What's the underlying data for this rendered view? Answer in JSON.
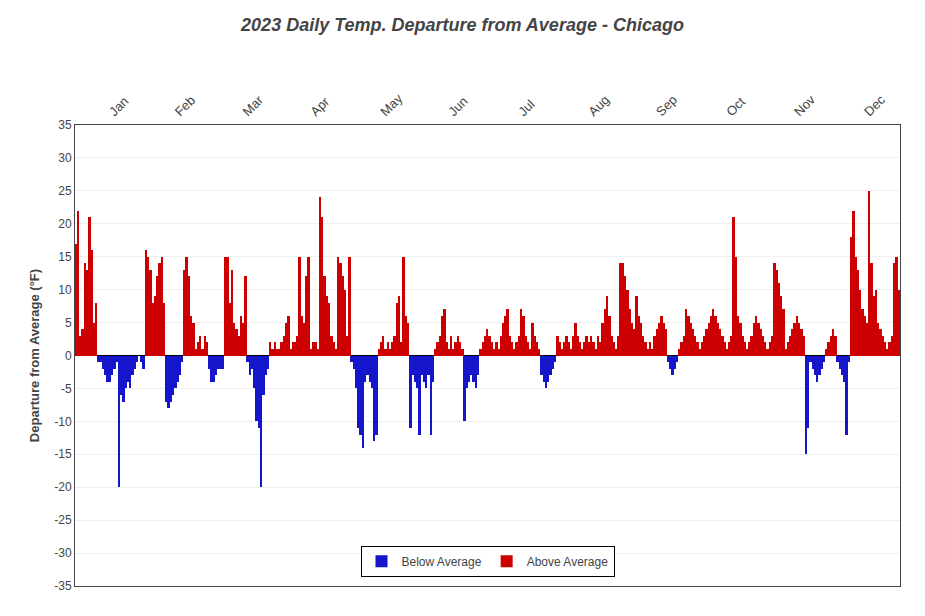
{
  "chart_data": {
    "type": "bar",
    "title": "2023 Daily Temp. Departure from Average - Chicago",
    "ylabel": "Departure from Average (°F)",
    "ylim": [
      -35,
      35
    ],
    "yticks": [
      -35,
      -30,
      -25,
      -20,
      -15,
      -10,
      -5,
      0,
      5,
      10,
      15,
      20,
      25,
      30,
      35
    ],
    "grid": true,
    "legend": "lower center",
    "categories": [
      null,
      null,
      null,
      null,
      null,
      null,
      null,
      null,
      null,
      null,
      null,
      null,
      null,
      null,
      null,
      "Jan",
      null,
      null,
      null,
      null,
      null,
      null,
      null,
      null,
      null,
      null,
      null,
      null,
      null,
      null,
      null,
      null,
      null,
      null,
      null,
      null,
      null,
      null,
      null,
      null,
      null,
      null,
      null,
      null,
      "Feb",
      null,
      null,
      null,
      null,
      null,
      null,
      null,
      null,
      null,
      null,
      null,
      null,
      null,
      null,
      null,
      null,
      null,
      null,
      null,
      null,
      null,
      null,
      null,
      null,
      null,
      null,
      null,
      null,
      null,
      "Mar",
      null,
      null,
      null,
      null,
      null,
      null,
      null,
      null,
      null,
      null,
      null,
      null,
      null,
      null,
      null,
      null,
      null,
      null,
      null,
      null,
      null,
      null,
      null,
      null,
      null,
      null,
      null,
      null,
      null,
      "Apr",
      null,
      null,
      null,
      null,
      null,
      null,
      null,
      null,
      null,
      null,
      null,
      null,
      null,
      null,
      null,
      null,
      null,
      null,
      null,
      null,
      null,
      null,
      null,
      null,
      null,
      null,
      null,
      null,
      null,
      null,
      "May",
      null,
      null,
      null,
      null,
      null,
      null,
      null,
      null,
      null,
      null,
      null,
      null,
      null,
      null,
      null,
      null,
      null,
      null,
      null,
      null,
      null,
      null,
      null,
      null,
      null,
      null,
      null,
      null,
      null,
      "Jun",
      null,
      null,
      null,
      null,
      null,
      null,
      null,
      null,
      null,
      null,
      null,
      null,
      null,
      null,
      null,
      null,
      null,
      null,
      null,
      null,
      null,
      null,
      null,
      null,
      null,
      null,
      null,
      null,
      null,
      null,
      "Jul",
      null,
      null,
      null,
      null,
      null,
      null,
      null,
      null,
      null,
      null,
      null,
      null,
      null,
      null,
      null,
      null,
      null,
      null,
      null,
      null,
      null,
      null,
      null,
      null,
      null,
      null,
      null,
      null,
      null,
      null,
      "Aug",
      null,
      null,
      null,
      null,
      null,
      null,
      null,
      null,
      null,
      null,
      null,
      null,
      null,
      null,
      null,
      null,
      null,
      null,
      null,
      null,
      null,
      null,
      null,
      null,
      null,
      null,
      null,
      null,
      null,
      "Sep",
      null,
      null,
      null,
      null,
      null,
      null,
      null,
      null,
      null,
      null,
      null,
      null,
      null,
      null,
      null,
      null,
      null,
      null,
      null,
      null,
      null,
      null,
      null,
      null,
      null,
      null,
      null,
      null,
      null,
      null,
      "Oct",
      null,
      null,
      null,
      null,
      null,
      null,
      null,
      null,
      null,
      null,
      null,
      null,
      null,
      null,
      null,
      null,
      null,
      null,
      null,
      null,
      null,
      null,
      null,
      null,
      null,
      null,
      null,
      null,
      null,
      "Nov",
      null,
      null,
      null,
      null,
      null,
      null,
      null,
      null,
      null,
      null,
      null,
      null,
      null,
      null,
      null,
      null,
      null,
      null,
      null,
      null,
      null,
      null,
      null,
      null,
      null,
      null,
      null,
      null,
      null,
      null,
      "Dec",
      null,
      null,
      null,
      null,
      null,
      null,
      null,
      null,
      null,
      null,
      null,
      null,
      null,
      null,
      null
    ],
    "series": [
      {
        "name": "Below Average",
        "color": "#1515CC",
        "values": [
          null,
          null,
          null,
          null,
          null,
          null,
          null,
          null,
          null,
          null,
          -1,
          -1,
          -2,
          -3,
          -4,
          -4,
          -3,
          -2,
          -1,
          -20,
          -6,
          -7,
          -5,
          -4,
          -5,
          -3,
          -2,
          -1,
          0,
          -1,
          -2,
          null,
          null,
          null,
          null,
          null,
          null,
          null,
          null,
          null,
          -7,
          -8,
          -7,
          -6,
          -5,
          -4,
          -3,
          -1,
          null,
          null,
          null,
          null,
          null,
          null,
          null,
          null,
          null,
          null,
          null,
          -2,
          -4,
          -4,
          -3,
          -2,
          -2,
          -2,
          null,
          null,
          null,
          null,
          null,
          null,
          null,
          null,
          null,
          null,
          -1,
          -3,
          -2,
          -5,
          -10,
          -11,
          -20,
          -6,
          -3,
          -2,
          null,
          null,
          null,
          null,
          null,
          null,
          null,
          null,
          null,
          null,
          null,
          null,
          null,
          null,
          null,
          null,
          null,
          null,
          null,
          null,
          null,
          null,
          null,
          null,
          null,
          null,
          null,
          null,
          null,
          null,
          null,
          null,
          null,
          null,
          null,
          null,
          -1,
          -2,
          -5,
          -11,
          -12,
          -14,
          -4,
          -3,
          -4,
          -5,
          -13,
          -12,
          null,
          null,
          null,
          null,
          null,
          null,
          null,
          null,
          null,
          null,
          null,
          null,
          null,
          null,
          -11,
          -3,
          -4,
          -5,
          -12,
          -3,
          -4,
          -5,
          -3,
          -12,
          -4,
          null,
          null,
          null,
          null,
          null,
          null,
          null,
          null,
          null,
          null,
          null,
          null,
          null,
          -10,
          -5,
          -4,
          -3,
          -4,
          -5,
          -3,
          null,
          null,
          null,
          null,
          null,
          null,
          null,
          null,
          null,
          null,
          null,
          null,
          null,
          null,
          null,
          null,
          null,
          null,
          null,
          null,
          null,
          null,
          null,
          null,
          null,
          null,
          null,
          -3,
          -4,
          -5,
          -4,
          -3,
          -2,
          -1,
          null,
          null,
          null,
          null,
          null,
          null,
          null,
          null,
          null,
          null,
          null,
          null,
          null,
          null,
          null,
          null,
          null,
          null,
          null,
          null,
          null,
          null,
          null,
          null,
          null,
          null,
          null,
          null,
          null,
          null,
          null,
          null,
          null,
          null,
          null,
          null,
          null,
          null,
          null,
          null,
          null,
          null,
          null,
          null,
          null,
          null,
          null,
          null,
          null,
          -1,
          -2,
          -3,
          -2,
          -1,
          null,
          null,
          null,
          null,
          null,
          null,
          null,
          null,
          null,
          null,
          null,
          null,
          null,
          null,
          null,
          null,
          null,
          null,
          null,
          null,
          null,
          null,
          null,
          null,
          null,
          null,
          null,
          null,
          null,
          null,
          null,
          null,
          null,
          null,
          null,
          null,
          null,
          null,
          null,
          null,
          null,
          null,
          null,
          null,
          null,
          null,
          null,
          null,
          null,
          null,
          null,
          null,
          null,
          null,
          null,
          null,
          -15,
          -11,
          -1,
          -2,
          -3,
          -4,
          -3,
          -2,
          -1,
          null,
          null,
          null,
          null,
          null,
          -1,
          -2,
          -3,
          -4,
          -12,
          -1,
          null,
          null,
          null,
          null,
          null,
          null,
          null,
          null,
          null,
          null,
          null,
          null,
          null,
          null,
          null,
          null,
          null,
          null,
          null,
          null,
          null,
          null
        ]
      },
      {
        "name": "Above Average",
        "color": "#CC0000",
        "values": [
          17,
          22,
          3,
          4,
          14,
          13,
          21,
          16,
          5,
          8,
          null,
          null,
          null,
          null,
          null,
          null,
          null,
          null,
          null,
          null,
          null,
          null,
          null,
          null,
          null,
          null,
          null,
          null,
          0,
          null,
          null,
          16,
          15,
          13,
          8,
          9,
          12,
          14,
          15,
          8,
          null,
          null,
          null,
          null,
          null,
          null,
          null,
          null,
          13,
          15,
          12,
          6,
          5,
          1,
          2,
          3,
          1,
          3,
          2,
          null,
          null,
          null,
          null,
          null,
          null,
          null,
          15,
          15,
          8,
          13,
          5,
          4,
          3,
          6,
          5,
          12,
          null,
          null,
          null,
          null,
          null,
          null,
          null,
          null,
          null,
          null,
          2,
          1,
          2,
          1,
          1,
          2,
          3,
          5,
          6,
          1,
          2,
          2,
          3,
          15,
          6,
          5,
          12,
          15,
          1,
          2,
          2,
          1,
          24,
          21,
          12,
          9,
          8,
          3,
          2,
          1,
          15,
          14,
          12,
          10,
          3,
          15,
          null,
          null,
          null,
          null,
          null,
          null,
          null,
          null,
          null,
          null,
          null,
          null,
          1,
          2,
          3,
          1,
          2,
          1,
          2,
          3,
          8,
          9,
          2,
          15,
          6,
          5,
          null,
          null,
          null,
          null,
          null,
          null,
          null,
          null,
          null,
          null,
          null,
          1,
          2,
          3,
          6,
          7,
          2,
          1,
          3,
          1,
          2,
          3,
          2,
          1,
          null,
          null,
          null,
          null,
          null,
          null,
          null,
          1,
          2,
          3,
          4,
          3,
          2,
          1,
          2,
          1,
          3,
          5,
          6,
          7,
          3,
          2,
          1,
          2,
          3,
          7,
          6,
          3,
          2,
          1,
          5,
          3,
          2,
          1,
          null,
          null,
          null,
          null,
          null,
          null,
          null,
          3,
          2,
          1,
          2,
          3,
          2,
          1,
          3,
          5,
          3,
          2,
          1,
          2,
          3,
          2,
          3,
          2,
          1,
          3,
          2,
          5,
          7,
          9,
          6,
          3,
          2,
          1,
          3,
          14,
          14,
          12,
          10,
          7,
          5,
          4,
          9,
          6,
          5,
          3,
          2,
          1,
          2,
          1,
          3,
          4,
          5,
          6,
          5,
          4,
          null,
          null,
          null,
          null,
          null,
          1,
          2,
          3,
          7,
          6,
          5,
          4,
          3,
          2,
          1,
          2,
          3,
          4,
          5,
          6,
          7,
          6,
          5,
          4,
          3,
          2,
          1,
          2,
          3,
          21,
          15,
          6,
          5,
          3,
          2,
          1,
          2,
          3,
          5,
          6,
          5,
          4,
          3,
          2,
          1,
          2,
          3,
          14,
          13,
          11,
          9,
          7,
          1,
          2,
          3,
          4,
          5,
          6,
          5,
          4,
          3,
          null,
          null,
          null,
          null,
          null,
          null,
          null,
          null,
          null,
          1,
          2,
          3,
          4,
          3,
          null,
          null,
          null,
          null,
          null,
          null,
          18,
          22,
          15,
          13,
          10,
          7,
          6,
          5,
          25,
          14,
          9,
          10,
          5,
          4,
          3,
          2,
          1,
          2,
          3,
          14,
          15,
          10
        ]
      }
    ]
  }
}
